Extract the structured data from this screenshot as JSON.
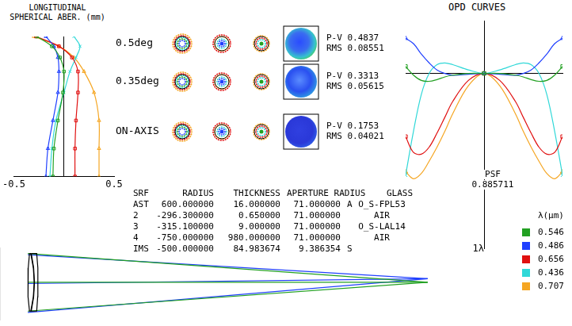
{
  "chart_data": [
    {
      "type": "line",
      "title": [
        "LONGITUDINAL",
        "SPHERICAL ABER. (mm)"
      ],
      "xlim": [
        -0.5,
        0.5
      ],
      "xticks": [
        -0.5,
        0.5
      ],
      "ylim": [
        0,
        1
      ],
      "yticks": [],
      "tick_labels": "x",
      "grid": false,
      "series": [
        {
          "color": "#22a022",
          "marker": "rect",
          "x": [
            -0.11,
            -0.1,
            -0.06,
            -0.01,
            0.0,
            -0.04,
            -0.12,
            -0.27
          ],
          "values": [
            0,
            0.2,
            0.4,
            0.6,
            0.75,
            0.85,
            0.93,
            1
          ]
        },
        {
          "color": "#2040ff",
          "marker": "triangle",
          "x": [
            -0.18,
            -0.16,
            -0.11,
            -0.06,
            -0.05,
            -0.06,
            -0.1,
            -0.18
          ],
          "values": [
            0,
            0.2,
            0.4,
            0.6,
            0.75,
            0.85,
            0.93,
            1
          ]
        },
        {
          "color": "#e01010",
          "marker": "rect",
          "x": [
            0.11,
            0.11,
            0.12,
            0.14,
            0.14,
            0.08,
            -0.05,
            -0.28
          ],
          "values": [
            0,
            0.2,
            0.4,
            0.6,
            0.75,
            0.85,
            0.93,
            1
          ]
        },
        {
          "color": "#30d8d8",
          "marker": "crossRot",
          "x": [
            -0.14,
            -0.12,
            -0.08,
            0.0,
            0.06,
            0.12,
            0.16,
            0.1
          ],
          "values": [
            0,
            0.2,
            0.4,
            0.6,
            0.75,
            0.85,
            0.93,
            1
          ]
        },
        {
          "color": "#f5a623",
          "marker": "triangle",
          "x": [
            0.35,
            0.35,
            0.35,
            0.3,
            0.2,
            0.1,
            -0.05,
            -0.3
          ],
          "values": [
            0,
            0.2,
            0.4,
            0.6,
            0.75,
            0.85,
            0.93,
            1
          ]
        }
      ]
    },
    {
      "type": "line",
      "title": "OPD CURVES",
      "xlim": [
        -1,
        1
      ],
      "xticks": [],
      "ylim": [
        -1,
        0.3
      ],
      "yticks": [
        {
          "value": -1,
          "label": "1λ"
        }
      ],
      "tick_labels": "y",
      "grid": false,
      "legend": "bottom-right",
      "legend_title": "λ(μm)",
      "annotation": {
        "label": "PSF",
        "value": 0.885711
      },
      "series": [
        {
          "name": "0.546",
          "color": "#22a022",
          "marker": "rect",
          "x": [
            -1,
            -0.9,
            -0.8,
            -0.7,
            -0.6,
            -0.5,
            -0.4,
            -0.2,
            0,
            0.2,
            0.4,
            0.5,
            0.6,
            0.7,
            0.8,
            0.9,
            1
          ],
          "values": [
            0.04,
            -0.01,
            -0.04,
            -0.045,
            -0.035,
            -0.02,
            -0.01,
            0,
            0,
            0,
            -0.01,
            -0.02,
            -0.035,
            -0.045,
            -0.04,
            -0.01,
            0.04
          ]
        },
        {
          "name": "0.486",
          "color": "#2040ff",
          "marker": "triangle",
          "x": [
            -1,
            -0.9,
            -0.8,
            -0.7,
            -0.6,
            -0.5,
            -0.4,
            -0.2,
            0,
            0.2,
            0.4,
            0.5,
            0.6,
            0.7,
            0.8,
            0.9,
            1
          ],
          "values": [
            0.2,
            0.17,
            0.11,
            0.06,
            0.02,
            0,
            -0.01,
            -0.005,
            0,
            -0.005,
            -0.01,
            0,
            0.02,
            0.06,
            0.11,
            0.17,
            0.2
          ]
        },
        {
          "name": "0.656",
          "color": "#e01010",
          "marker": "rect",
          "x": [
            -1,
            -0.9,
            -0.8,
            -0.7,
            -0.6,
            -0.5,
            -0.4,
            -0.2,
            0,
            0.2,
            0.4,
            0.5,
            0.6,
            0.7,
            0.8,
            0.9,
            1
          ],
          "values": [
            -0.36,
            -0.45,
            -0.46,
            -0.42,
            -0.34,
            -0.25,
            -0.16,
            -0.04,
            0,
            -0.04,
            -0.16,
            -0.25,
            -0.34,
            -0.42,
            -0.46,
            -0.45,
            -0.36
          ]
        },
        {
          "name": "0.436",
          "color": "#30d8d8",
          "marker": "crossRot",
          "x": [
            -1,
            -0.9,
            -0.8,
            -0.7,
            -0.6,
            -0.5,
            -0.4,
            -0.2,
            0,
            0.2,
            0.4,
            0.5,
            0.6,
            0.7,
            0.8,
            0.9,
            1
          ],
          "values": [
            -0.58,
            -0.33,
            -0.12,
            0,
            0.05,
            0.06,
            0.05,
            0.02,
            0,
            0.02,
            0.05,
            0.06,
            0.05,
            0,
            -0.12,
            -0.33,
            -0.58
          ]
        },
        {
          "name": "0.707",
          "color": "#f5a623",
          "marker": "triangle",
          "x": [
            -1,
            -0.9,
            -0.8,
            -0.7,
            -0.6,
            -0.5,
            -0.4,
            -0.2,
            0,
            0.2,
            0.4,
            0.5,
            0.6,
            0.7,
            0.8,
            0.9,
            1
          ],
          "values": [
            -0.56,
            -0.6,
            -0.57,
            -0.5,
            -0.42,
            -0.33,
            -0.23,
            -0.07,
            0,
            -0.07,
            -0.23,
            -0.33,
            -0.42,
            -0.5,
            -0.57,
            -0.6,
            -0.56
          ]
        }
      ]
    },
    {
      "type": "line",
      "xlim": [
        -70,
        1026
      ],
      "xticks": [],
      "ylim": [
        -94,
        86
      ],
      "yticks": [],
      "tick_labels": false,
      "grid": false,
      "series": [
        {
          "color": "#000000",
          "marker": "none",
          "line_style": "solid",
          "x": [
            4.2,
            1.05,
            0,
            1.05,
            4.2,
            7.5,
            13.87,
            16,
            13.87,
            7.5,
            4.2
          ],
          "values": [
            71,
            35.5,
            0,
            -35.5,
            -71,
            -71,
            -35.5,
            0,
            35.5,
            71,
            71
          ]
        },
        {
          "color": "#000000",
          "marker": "none",
          "line_style": "solid",
          "x": [
            8.65,
            14.65,
            16.65,
            14.65,
            8.65,
            22.29,
            24.81,
            25.65,
            24.81,
            22.29,
            8.65
          ],
          "values": [
            71,
            35.5,
            0,
            -35.5,
            -71,
            -71,
            -35.5,
            0,
            35.5,
            71,
            71
          ]
        },
        {
          "color": "#22a022",
          "marker": "none",
          "line_style": "solid",
          "x": [
            0,
            1005.65
          ],
          "values": [
            71,
            0
          ]
        },
        {
          "color": "#22a022",
          "marker": "none",
          "line_style": "solid",
          "x": [
            0,
            1005.65
          ],
          "values": [
            -71,
            0
          ]
        },
        {
          "color": "#22a022",
          "marker": "none",
          "line_style": "solid",
          "x": [
            0,
            1005.65
          ],
          "values": [
            0,
            0
          ]
        },
        {
          "color": "#2040ff",
          "marker": "none",
          "line_style": "solid",
          "x": [
            0,
            1005.65
          ],
          "values": [
            68,
            8.8
          ]
        },
        {
          "color": "#2040ff",
          "marker": "none",
          "line_style": "solid",
          "x": [
            0,
            1005.65
          ],
          "values": [
            -74,
            8.8
          ]
        },
        {
          "color": "#2040ff",
          "marker": "none",
          "line_style": "solid",
          "x": [
            0,
            1005.65
          ],
          "values": [
            -3,
            8.8
          ]
        }
      ]
    }
  ],
  "fields": [
    {
      "label": "0.5deg",
      "metrics": {
        "P-V": 0.4837,
        "RMS": 0.08551
      }
    },
    {
      "label": "0.35deg",
      "metrics": {
        "P-V": 0.3313,
        "RMS": 0.05615
      }
    },
    {
      "label": "ON-AXIS",
      "metrics": {
        "P-V": 0.1753,
        "RMS": 0.04021
      }
    }
  ],
  "table": {
    "header": [
      "SRF",
      "RADIUS",
      "THICKNESS",
      "APERTURE RADIUS",
      "GLASS"
    ],
    "rows": [
      [
        "AST",
        "600.000000",
        "16.000000",
        "71.000000",
        "A",
        "O_S-FPL53"
      ],
      [
        "2",
        "-296.300000",
        "0.650000",
        "71.000000",
        null,
        "AIR"
      ],
      [
        "3",
        "-315.100000",
        "9.000000",
        "71.000000",
        null,
        "O_S-LAL14"
      ],
      [
        "4",
        "-750.000000",
        "980.000000",
        "71.000000",
        null,
        "AIR"
      ],
      [
        "IMS",
        "-500.000000",
        "84.983674",
        "9.386354",
        "S",
        null
      ]
    ]
  }
}
